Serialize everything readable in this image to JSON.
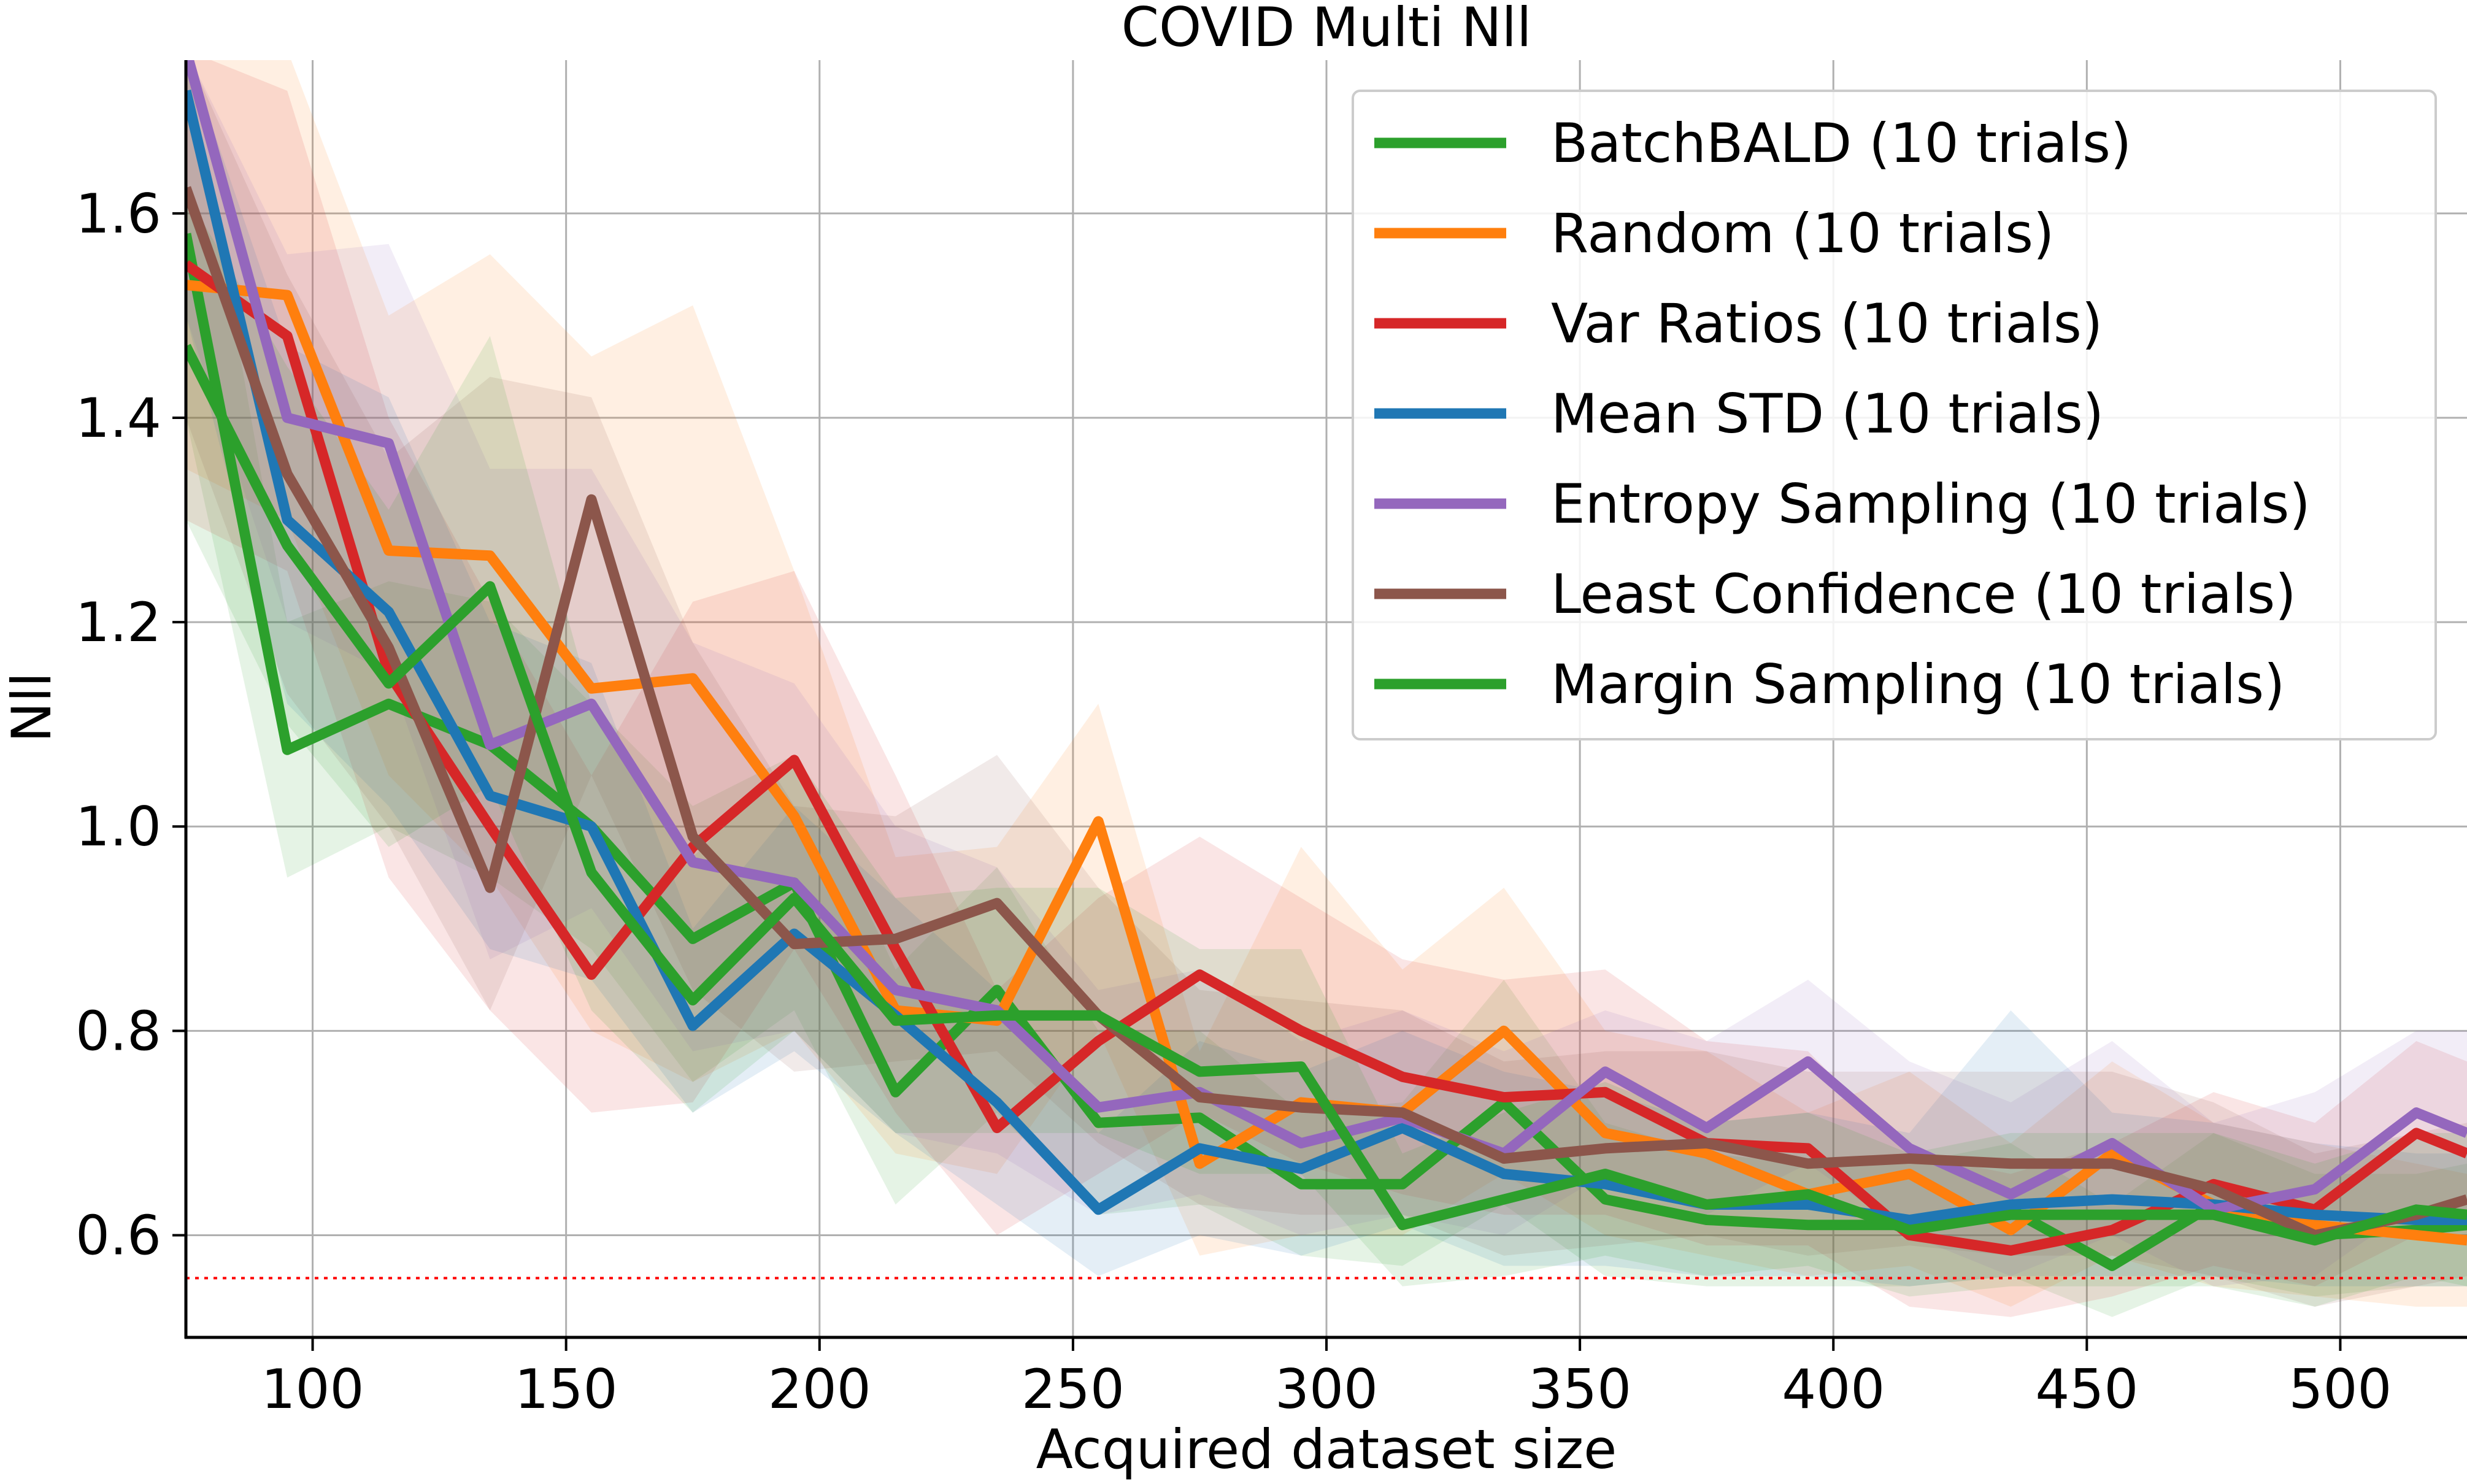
{
  "chart_data": {
    "type": "line",
    "title": "COVID Multi Nll",
    "xlabel": "Acquired dataset size",
    "ylabel": "Nll",
    "xlim": [
      75,
      525
    ],
    "ylim": [
      0.5,
      1.75
    ],
    "xticks": [
      100,
      150,
      200,
      250,
      300,
      350,
      400,
      450,
      500
    ],
    "yticks": [
      0.6,
      0.8,
      1.0,
      1.2,
      1.4,
      1.6
    ],
    "xtick_labels": [
      "100",
      "150",
      "200",
      "250",
      "300",
      "350",
      "400",
      "450",
      "500"
    ],
    "ytick_labels": [
      "0.6",
      "0.8",
      "1.0",
      "1.2",
      "1.4",
      "1.6"
    ],
    "grid": true,
    "legend_position": "top-right",
    "reference_line": {
      "y": 0.558,
      "color": "#ff0000",
      "style": "dotted"
    },
    "x": [
      75,
      95,
      115,
      135,
      155,
      175,
      195,
      215,
      235,
      255,
      275,
      295,
      315,
      335,
      355,
      375,
      395,
      415,
      435,
      455,
      475,
      495,
      515,
      525
    ],
    "series": [
      {
        "name": "BatchBALD (10 trials)",
        "color": "#2ca02c",
        "values": [
          1.58,
          1.075,
          1.12,
          1.08,
          1.0,
          0.89,
          0.945,
          0.74,
          0.84,
          0.71,
          0.715,
          0.65,
          0.65,
          0.73,
          0.635,
          0.615,
          0.61,
          0.61,
          0.625,
          0.57,
          0.63,
          0.6,
          0.605,
          0.61
        ],
        "lower": [
          1.4,
          0.95,
          1.0,
          0.95,
          0.88,
          0.75,
          0.82,
          0.63,
          0.72,
          0.62,
          0.63,
          0.58,
          0.57,
          0.63,
          0.56,
          0.55,
          0.55,
          0.55,
          0.56,
          0.52,
          0.56,
          0.54,
          0.55,
          0.55
        ],
        "upper": [
          1.76,
          1.2,
          1.24,
          1.22,
          1.12,
          1.02,
          1.07,
          0.86,
          0.96,
          0.8,
          0.8,
          0.72,
          0.73,
          0.85,
          0.71,
          0.68,
          0.67,
          0.67,
          0.69,
          0.63,
          0.7,
          0.66,
          0.66,
          0.67
        ]
      },
      {
        "name": "Random (10 trials)",
        "color": "#ff7f0e",
        "values": [
          1.53,
          1.52,
          1.27,
          1.265,
          1.135,
          1.145,
          1.01,
          0.82,
          0.81,
          1.005,
          0.67,
          0.73,
          0.72,
          0.8,
          0.7,
          0.68,
          0.64,
          0.66,
          0.605,
          0.68,
          0.63,
          0.61,
          0.6,
          0.595
        ],
        "lower": [
          1.35,
          1.3,
          1.05,
          0.95,
          0.8,
          0.75,
          0.8,
          0.68,
          0.66,
          0.8,
          0.58,
          0.6,
          0.6,
          0.66,
          0.6,
          0.58,
          0.56,
          0.57,
          0.53,
          0.58,
          0.55,
          0.54,
          0.53,
          0.53
        ],
        "upper": [
          1.76,
          1.76,
          1.5,
          1.56,
          1.46,
          1.51,
          1.25,
          0.97,
          0.98,
          1.12,
          0.78,
          0.98,
          0.86,
          0.94,
          0.8,
          0.78,
          0.72,
          0.76,
          0.69,
          0.77,
          0.71,
          0.69,
          0.67,
          0.66
        ]
      },
      {
        "name": "Var Ratios (10 trials)",
        "color": "#d62728",
        "values": [
          1.55,
          1.48,
          1.15,
          1.0,
          0.855,
          0.98,
          1.065,
          0.88,
          0.705,
          0.79,
          0.855,
          0.8,
          0.755,
          0.735,
          0.74,
          0.69,
          0.685,
          0.6,
          0.585,
          0.605,
          0.65,
          0.625,
          0.7,
          0.68
        ],
        "lower": [
          1.3,
          1.25,
          0.95,
          0.82,
          0.72,
          0.73,
          0.88,
          0.72,
          0.6,
          0.66,
          0.72,
          0.67,
          0.64,
          0.62,
          0.62,
          0.59,
          0.59,
          0.53,
          0.52,
          0.54,
          0.57,
          0.55,
          0.6,
          0.59
        ],
        "upper": [
          1.76,
          1.72,
          1.4,
          1.22,
          1.05,
          1.22,
          1.25,
          1.05,
          0.84,
          0.93,
          0.99,
          0.93,
          0.87,
          0.85,
          0.86,
          0.79,
          0.78,
          0.68,
          0.66,
          0.69,
          0.74,
          0.71,
          0.79,
          0.77
        ]
      },
      {
        "name": "Mean STD (10 trials)",
        "color": "#1f77b4",
        "values": [
          1.72,
          1.3,
          1.21,
          1.03,
          1.0,
          0.805,
          0.895,
          0.815,
          0.73,
          0.625,
          0.685,
          0.665,
          0.705,
          0.66,
          0.65,
          0.63,
          0.63,
          0.615,
          0.63,
          0.635,
          0.63,
          0.62,
          0.615,
          0.615
        ],
        "lower": [
          1.5,
          1.12,
          1.02,
          0.88,
          0.85,
          0.72,
          0.78,
          0.7,
          0.63,
          0.56,
          0.6,
          0.58,
          0.61,
          0.57,
          0.57,
          0.56,
          0.56,
          0.55,
          0.56,
          0.56,
          0.56,
          0.55,
          0.55,
          0.55
        ],
        "upper": [
          1.76,
          1.47,
          1.42,
          1.2,
          1.16,
          0.9,
          1.02,
          0.93,
          0.84,
          0.7,
          0.79,
          0.76,
          0.8,
          0.76,
          0.74,
          0.71,
          0.72,
          0.7,
          0.82,
          0.72,
          0.71,
          0.69,
          0.68,
          0.68
        ]
      },
      {
        "name": "Entropy Sampling (10 trials)",
        "color": "#9467bd",
        "values": [
          1.76,
          1.4,
          1.375,
          1.08,
          1.12,
          0.965,
          0.945,
          0.84,
          0.82,
          0.725,
          0.74,
          0.69,
          0.715,
          0.68,
          0.76,
          0.705,
          0.77,
          0.685,
          0.64,
          0.69,
          0.625,
          0.645,
          0.72,
          0.7
        ],
        "lower": [
          1.5,
          1.2,
          1.15,
          0.87,
          0.92,
          0.78,
          0.8,
          0.7,
          0.68,
          0.62,
          0.64,
          0.6,
          0.62,
          0.6,
          0.66,
          0.62,
          0.67,
          0.6,
          0.56,
          0.6,
          0.55,
          0.56,
          0.63,
          0.61
        ],
        "upper": [
          1.76,
          1.56,
          1.57,
          1.35,
          1.35,
          1.18,
          1.14,
          1.0,
          0.96,
          0.84,
          0.86,
          0.79,
          0.82,
          0.78,
          0.82,
          0.79,
          0.85,
          0.77,
          0.73,
          0.79,
          0.71,
          0.74,
          0.8,
          0.8
        ]
      },
      {
        "name": "Least Confidence (10 trials)",
        "color": "#8c564b",
        "values": [
          1.625,
          1.345,
          1.175,
          0.94,
          1.32,
          0.99,
          0.885,
          0.89,
          0.925,
          0.815,
          0.735,
          0.725,
          0.72,
          0.675,
          0.685,
          0.69,
          0.67,
          0.675,
          0.67,
          0.67,
          0.645,
          0.6,
          0.62,
          0.635
        ],
        "lower": [
          1.4,
          1.13,
          1.0,
          0.82,
          1.05,
          0.84,
          0.76,
          0.77,
          0.78,
          0.69,
          0.63,
          0.62,
          0.62,
          0.58,
          0.59,
          0.6,
          0.58,
          0.59,
          0.58,
          0.58,
          0.56,
          0.53,
          0.55,
          0.56
        ],
        "upper": [
          1.76,
          1.54,
          1.36,
          1.44,
          1.42,
          1.18,
          1.02,
          1.01,
          1.07,
          0.94,
          0.84,
          0.83,
          0.82,
          0.77,
          0.78,
          0.78,
          0.76,
          0.76,
          0.76,
          0.76,
          0.73,
          0.68,
          0.7,
          0.71
        ]
      },
      {
        "name": "Margin Sampling (10 trials)",
        "color": "#2ca02c",
        "values": [
          1.47,
          1.275,
          1.14,
          1.235,
          0.955,
          0.83,
          0.93,
          0.81,
          0.815,
          0.815,
          0.76,
          0.765,
          0.61,
          0.635,
          0.66,
          0.63,
          0.64,
          0.605,
          0.62,
          0.62,
          0.62,
          0.595,
          0.625,
          0.62
        ],
        "lower": [
          1.3,
          1.1,
          0.98,
          1.04,
          0.82,
          0.72,
          0.8,
          0.7,
          0.7,
          0.7,
          0.66,
          0.66,
          0.55,
          0.56,
          0.58,
          0.56,
          0.57,
          0.54,
          0.55,
          0.55,
          0.55,
          0.53,
          0.56,
          0.55
        ],
        "upper": [
          1.62,
          1.45,
          1.31,
          1.48,
          1.12,
          0.97,
          1.07,
          0.93,
          0.94,
          0.94,
          0.88,
          0.88,
          0.68,
          0.72,
          0.75,
          0.71,
          0.72,
          0.68,
          0.7,
          0.7,
          0.7,
          0.67,
          0.7,
          0.7
        ]
      }
    ]
  }
}
